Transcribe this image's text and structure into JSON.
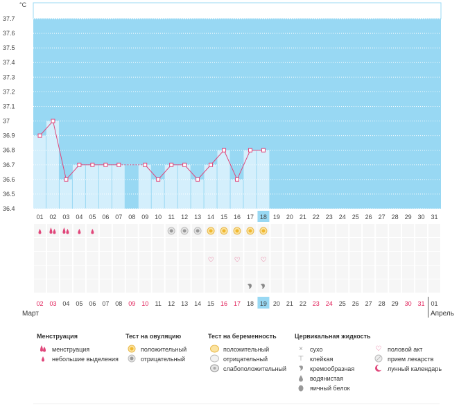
{
  "unit_label": "°C",
  "months": {
    "left": "Март",
    "right": "Апрель"
  },
  "colors": {
    "bg": "#98d8f3",
    "bar": "#d4effc",
    "line": "#e0467a",
    "highlight": "#98d8f3",
    "red_day": "#e0215a"
  },
  "chart_data": {
    "type": "line",
    "ylabel": "°C",
    "ylim": [
      36.4,
      37.8
    ],
    "y_ticks": [
      "37.7",
      "37.6",
      "37.5",
      "37.4",
      "37.3",
      "37.2",
      "37.1",
      "37",
      "36.9",
      "36.8",
      "36.7",
      "36.6",
      "36.5",
      "36.4"
    ],
    "cycle_days": [
      "01",
      "02",
      "03",
      "04",
      "05",
      "06",
      "07",
      "08",
      "09",
      "10",
      "11",
      "12",
      "13",
      "14",
      "15",
      "16",
      "17",
      "18",
      "19",
      "20",
      "21",
      "22",
      "23",
      "24",
      "25",
      "26",
      "27",
      "28",
      "29",
      "30",
      "31"
    ],
    "current_cycle_day": "18",
    "series": [
      {
        "values": [
          36.9,
          37.0,
          36.6,
          36.7,
          36.7,
          36.7,
          36.7,
          null,
          36.7,
          36.6,
          36.7,
          36.7,
          36.6,
          36.7,
          36.8,
          36.6,
          36.8,
          36.8,
          null,
          null,
          null,
          null,
          null,
          null,
          null,
          null,
          null,
          null,
          null,
          null,
          null
        ]
      }
    ],
    "date_labels": [
      "02",
      "03",
      "04",
      "05",
      "06",
      "07",
      "08",
      "09",
      "10",
      "11",
      "12",
      "13",
      "14",
      "15",
      "16",
      "17",
      "18",
      "19",
      "20",
      "21",
      "22",
      "23",
      "24",
      "25",
      "26",
      "27",
      "28",
      "29",
      "30",
      "31",
      "01"
    ],
    "red_dates": [
      0,
      1,
      7,
      8,
      14,
      15,
      21,
      22,
      28,
      29
    ],
    "current_date_index": 17,
    "gap_dashed_between": [
      6,
      8
    ]
  },
  "markers": {
    "menstruation": [
      {
        "day": 0,
        "type": "small"
      },
      {
        "day": 1,
        "type": "heavy"
      },
      {
        "day": 2,
        "type": "heavy"
      },
      {
        "day": 3,
        "type": "small"
      },
      {
        "day": 4,
        "type": "small"
      }
    ],
    "ovulation": [
      {
        "day": 10,
        "type": "negative"
      },
      {
        "day": 11,
        "type": "negative"
      },
      {
        "day": 12,
        "type": "negative"
      },
      {
        "day": 13,
        "type": "positive"
      },
      {
        "day": 14,
        "type": "positive"
      },
      {
        "day": 15,
        "type": "positive"
      },
      {
        "day": 16,
        "type": "positive"
      },
      {
        "day": 17,
        "type": "positive"
      }
    ],
    "intercourse": [
      13,
      15,
      17
    ],
    "cervical_fluid": [
      16,
      17
    ]
  },
  "legend": [
    {
      "title": "Менструация",
      "items": [
        {
          "icon": "drop-heavy-icon",
          "label": "менструация"
        },
        {
          "icon": "drop-small-icon",
          "label": "небольшие выделения"
        }
      ]
    },
    {
      "title": "Тест на овуляцию",
      "items": [
        {
          "icon": "ovulation-positive-icon",
          "label": "положительный"
        },
        {
          "icon": "ovulation-negative-icon",
          "label": "отрицательный"
        }
      ]
    },
    {
      "title": "Тест на беременность",
      "items": [
        {
          "icon": "pregnancy-positive-icon",
          "label": "положительный"
        },
        {
          "icon": "pregnancy-negative-icon",
          "label": "отрицательный"
        },
        {
          "icon": "pregnancy-weak-icon",
          "label": "слабоположительный"
        }
      ]
    },
    {
      "title": "Цервикальная жидкость",
      "items": [
        {
          "icon": "dry-icon",
          "label": "сухо"
        },
        {
          "icon": "sticky-icon",
          "label": "клейкая"
        },
        {
          "icon": "creamy-icon",
          "label": "кремообразная"
        },
        {
          "icon": "watery-icon",
          "label": "водянистая"
        },
        {
          "icon": "eggwhite-icon",
          "label": "яичный белок"
        }
      ]
    },
    {
      "title": "",
      "items": [
        {
          "icon": "heart-icon",
          "label": "половой акт"
        },
        {
          "icon": "pill-icon",
          "label": "прием лекарств"
        },
        {
          "icon": "moon-icon",
          "label": "лунный календарь"
        }
      ]
    }
  ]
}
